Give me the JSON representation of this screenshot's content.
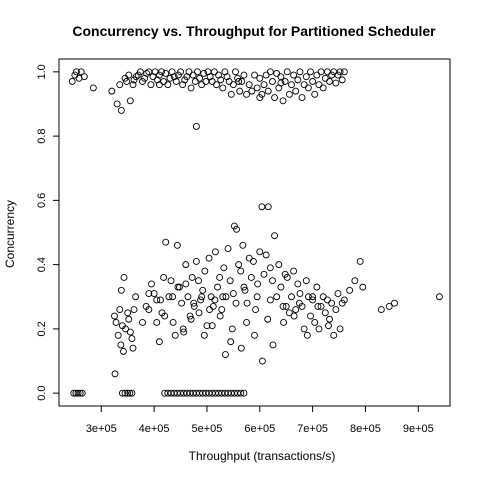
{
  "chart_data": {
    "type": "scatter",
    "title": "Concurrency vs. Throughput for Partitioned Scheduler",
    "xlabel": "Throughput (transactions/s)",
    "ylabel": "Concurrency",
    "xlim": [
      220000,
      960000
    ],
    "ylim": [
      -0.04,
      1.04
    ],
    "grid": false,
    "marker": "open-circle",
    "point_color": "#000000",
    "x_ticks": [
      300000,
      400000,
      500000,
      600000,
      700000,
      800000,
      900000
    ],
    "x_tick_labels": [
      "3e+05",
      "4e+05",
      "5e+05",
      "6e+05",
      "7e+05",
      "8e+05",
      "9e+05"
    ],
    "y_ticks": [
      0.0,
      0.2,
      0.4,
      0.6,
      0.8,
      1.0
    ],
    "y_tick_labels": [
      "0.0",
      "0.2",
      "0.4",
      "0.6",
      "0.8",
      "1.0"
    ],
    "points": [
      [
        245000,
        0.97
      ],
      [
        250000,
        0.99
      ],
      [
        253000,
        1.0
      ],
      [
        258000,
        0.98
      ],
      [
        262000,
        1.0
      ],
      [
        268000,
        0.985
      ],
      [
        285000,
        0.95
      ],
      [
        320000,
        0.94
      ],
      [
        330000,
        0.9
      ],
      [
        335000,
        0.96
      ],
      [
        338000,
        0.88
      ],
      [
        345000,
        0.98
      ],
      [
        348000,
        0.97
      ],
      [
        352000,
        0.99
      ],
      [
        355000,
        0.91
      ],
      [
        360000,
        0.96
      ],
      [
        362000,
        0.975
      ],
      [
        366000,
        0.985
      ],
      [
        370000,
        0.99
      ],
      [
        374000,
        1.0
      ],
      [
        378000,
        0.97
      ],
      [
        382000,
        0.98
      ],
      [
        386000,
        0.995
      ],
      [
        390000,
        1.0
      ],
      [
        394000,
        0.96
      ],
      [
        398000,
        0.985
      ],
      [
        402000,
        1.0
      ],
      [
        406000,
        0.975
      ],
      [
        410000,
        0.99
      ],
      [
        414000,
        1.0
      ],
      [
        418000,
        0.97
      ],
      [
        422000,
        0.995
      ],
      [
        426000,
        0.96
      ],
      [
        430000,
        0.98
      ],
      [
        434000,
        1.0
      ],
      [
        438000,
        0.985
      ],
      [
        442000,
        0.97
      ],
      [
        446000,
        0.99
      ],
      [
        450000,
        1.0
      ],
      [
        454000,
        0.96
      ],
      [
        458000,
        0.975
      ],
      [
        462000,
        0.985
      ],
      [
        466000,
        1.0
      ],
      [
        470000,
        0.95
      ],
      [
        474000,
        0.99
      ],
      [
        478000,
        0.97
      ],
      [
        482000,
        1.0
      ],
      [
        486000,
        0.98
      ],
      [
        490000,
        0.96
      ],
      [
        494000,
        0.995
      ],
      [
        498000,
        0.97
      ],
      [
        502000,
        1.0
      ],
      [
        506000,
        0.985
      ],
      [
        510000,
        0.97
      ],
      [
        514000,
        1.0
      ],
      [
        518000,
        0.96
      ],
      [
        522000,
        0.99
      ],
      [
        526000,
        0.975
      ],
      [
        530000,
        0.95
      ],
      [
        534000,
        1.0
      ],
      [
        538000,
        0.985
      ],
      [
        542000,
        0.97
      ],
      [
        546000,
        0.93
      ],
      [
        550000,
        0.96
      ],
      [
        554000,
        1.0
      ],
      [
        558000,
        0.98
      ],
      [
        562000,
        0.94
      ],
      [
        566000,
        0.97
      ],
      [
        570000,
        0.99
      ],
      [
        575000,
        0.93
      ],
      [
        580000,
        0.96
      ],
      [
        585000,
        0.94
      ],
      [
        590000,
        0.99
      ],
      [
        595000,
        0.95
      ],
      [
        600000,
        0.98
      ],
      [
        604000,
        0.93
      ],
      [
        608000,
        0.96
      ],
      [
        612000,
        0.99
      ],
      [
        616000,
        0.94
      ],
      [
        620000,
        1.0
      ],
      [
        624000,
        0.97
      ],
      [
        628000,
        0.92
      ],
      [
        632000,
        0.995
      ],
      [
        636000,
        0.95
      ],
      [
        640000,
        0.985
      ],
      [
        644000,
        0.91
      ],
      [
        648000,
        0.97
      ],
      [
        652000,
        1.0
      ],
      [
        656000,
        0.93
      ],
      [
        660000,
        0.96
      ],
      [
        664000,
        0.99
      ],
      [
        668000,
        0.94
      ],
      [
        672000,
        0.975
      ],
      [
        676000,
        1.0
      ],
      [
        680000,
        0.92
      ],
      [
        684000,
        0.96
      ],
      [
        688000,
        0.985
      ],
      [
        692000,
        0.95
      ],
      [
        696000,
        1.0
      ],
      [
        700000,
        0.97
      ],
      [
        704000,
        0.93
      ],
      [
        708000,
        0.99
      ],
      [
        712000,
        0.96
      ],
      [
        716000,
        1.0
      ],
      [
        720000,
        0.95
      ],
      [
        724000,
        0.98
      ],
      [
        728000,
        1.0
      ],
      [
        732000,
        0.97
      ],
      [
        736000,
        0.99
      ],
      [
        740000,
        1.0
      ],
      [
        744000,
        0.965
      ],
      [
        748000,
        0.99
      ],
      [
        752000,
        1.0
      ],
      [
        756000,
        0.975
      ],
      [
        760000,
        1.0
      ],
      [
        480000,
        0.83
      ],
      [
        410000,
        0.96
      ],
      [
        600000,
        0.92
      ],
      [
        640000,
        0.965
      ],
      [
        560000,
        0.97
      ],
      [
        248000,
        0.0
      ],
      [
        252000,
        0.0
      ],
      [
        256000,
        0.0
      ],
      [
        260000,
        0.0
      ],
      [
        264000,
        0.0
      ],
      [
        340000,
        0.0
      ],
      [
        345000,
        0.0
      ],
      [
        350000,
        0.0
      ],
      [
        354000,
        0.0
      ],
      [
        358000,
        0.0
      ],
      [
        420000,
        0.0
      ],
      [
        426000,
        0.0
      ],
      [
        432000,
        0.0
      ],
      [
        438000,
        0.0
      ],
      [
        444000,
        0.0
      ],
      [
        450000,
        0.0
      ],
      [
        456000,
        0.0
      ],
      [
        462000,
        0.0
      ],
      [
        468000,
        0.0
      ],
      [
        474000,
        0.0
      ],
      [
        480000,
        0.0
      ],
      [
        486000,
        0.0
      ],
      [
        492000,
        0.0
      ],
      [
        498000,
        0.0
      ],
      [
        504000,
        0.0
      ],
      [
        510000,
        0.0
      ],
      [
        516000,
        0.0
      ],
      [
        522000,
        0.0
      ],
      [
        528000,
        0.0
      ],
      [
        534000,
        0.0
      ],
      [
        540000,
        0.0
      ],
      [
        546000,
        0.0
      ],
      [
        552000,
        0.0
      ],
      [
        558000,
        0.0
      ],
      [
        564000,
        0.0
      ],
      [
        570000,
        0.0
      ],
      [
        325000,
        0.24
      ],
      [
        328000,
        0.22
      ],
      [
        332000,
        0.18
      ],
      [
        335000,
        0.26
      ],
      [
        337000,
        0.15
      ],
      [
        340000,
        0.21
      ],
      [
        342000,
        0.13
      ],
      [
        343000,
        0.36
      ],
      [
        346000,
        0.2
      ],
      [
        350000,
        0.25
      ],
      [
        352000,
        0.23
      ],
      [
        355000,
        0.19
      ],
      [
        358000,
        0.17
      ],
      [
        360000,
        0.14
      ],
      [
        362000,
        0.26
      ],
      [
        365000,
        0.3
      ],
      [
        326000,
        0.06
      ],
      [
        338000,
        0.32
      ],
      [
        378000,
        0.22
      ],
      [
        385000,
        0.27
      ],
      [
        390000,
        0.26
      ],
      [
        395000,
        0.34
      ],
      [
        400000,
        0.31
      ],
      [
        405000,
        0.22
      ],
      [
        410000,
        0.16
      ],
      [
        412000,
        0.29
      ],
      [
        415000,
        0.25
      ],
      [
        418000,
        0.36
      ],
      [
        422000,
        0.47
      ],
      [
        428000,
        0.3
      ],
      [
        432000,
        0.35
      ],
      [
        436000,
        0.22
      ],
      [
        440000,
        0.18
      ],
      [
        444000,
        0.46
      ],
      [
        448000,
        0.33
      ],
      [
        452000,
        0.28
      ],
      [
        456000,
        0.19
      ],
      [
        460000,
        0.4
      ],
      [
        464000,
        0.3
      ],
      [
        468000,
        0.24
      ],
      [
        472000,
        0.36
      ],
      [
        476000,
        0.27
      ],
      [
        480000,
        0.41
      ],
      [
        484000,
        0.35
      ],
      [
        488000,
        0.29
      ],
      [
        492000,
        0.32
      ],
      [
        496000,
        0.38
      ],
      [
        500000,
        0.21
      ],
      [
        504000,
        0.42
      ],
      [
        508000,
        0.3
      ],
      [
        512000,
        0.27
      ],
      [
        516000,
        0.44
      ],
      [
        520000,
        0.33
      ],
      [
        524000,
        0.36
      ],
      [
        528000,
        0.26
      ],
      [
        532000,
        0.39
      ],
      [
        536000,
        0.3
      ],
      [
        540000,
        0.45
      ],
      [
        544000,
        0.35
      ],
      [
        548000,
        0.2
      ],
      [
        552000,
        0.52
      ],
      [
        556000,
        0.51
      ],
      [
        560000,
        0.4
      ],
      [
        564000,
        0.38
      ],
      [
        568000,
        0.46
      ],
      [
        572000,
        0.32
      ],
      [
        576000,
        0.28
      ],
      [
        580000,
        0.42
      ],
      [
        584000,
        0.36
      ],
      [
        588000,
        0.41
      ],
      [
        592000,
        0.26
      ],
      [
        596000,
        0.34
      ],
      [
        600000,
        0.44
      ],
      [
        604000,
        0.58
      ],
      [
        608000,
        0.37
      ],
      [
        612000,
        0.43
      ],
      [
        616000,
        0.58
      ],
      [
        620000,
        0.39
      ],
      [
        624000,
        0.35
      ],
      [
        628000,
        0.49
      ],
      [
        632000,
        0.3
      ],
      [
        636000,
        0.4
      ],
      [
        640000,
        0.33
      ],
      [
        644000,
        0.27
      ],
      [
        648000,
        0.37
      ],
      [
        652000,
        0.36
      ],
      [
        656000,
        0.25
      ],
      [
        660000,
        0.3
      ],
      [
        664000,
        0.38
      ],
      [
        668000,
        0.26
      ],
      [
        672000,
        0.34
      ],
      [
        676000,
        0.31
      ],
      [
        680000,
        0.27
      ],
      [
        684000,
        0.2
      ],
      [
        688000,
        0.35
      ],
      [
        692000,
        0.3
      ],
      [
        696000,
        0.24
      ],
      [
        700000,
        0.29
      ],
      [
        704000,
        0.22
      ],
      [
        708000,
        0.33
      ],
      [
        712000,
        0.2
      ],
      [
        716000,
        0.27
      ],
      [
        720000,
        0.3
      ],
      [
        724000,
        0.25
      ],
      [
        728000,
        0.29
      ],
      [
        732000,
        0.23
      ],
      [
        736000,
        0.28
      ],
      [
        740000,
        0.18
      ],
      [
        744000,
        0.26
      ],
      [
        748000,
        0.31
      ],
      [
        752000,
        0.2
      ],
      [
        756000,
        0.28
      ],
      [
        760000,
        0.29
      ],
      [
        770000,
        0.32
      ],
      [
        780000,
        0.35
      ],
      [
        790000,
        0.41
      ],
      [
        795000,
        0.33
      ],
      [
        830000,
        0.26
      ],
      [
        845000,
        0.27
      ],
      [
        855000,
        0.28
      ],
      [
        940000,
        0.3
      ],
      [
        455000,
        0.2
      ],
      [
        470000,
        0.23
      ],
      [
        485000,
        0.25
      ],
      [
        495000,
        0.18
      ],
      [
        510000,
        0.21
      ],
      [
        525000,
        0.24
      ],
      [
        535000,
        0.12
      ],
      [
        545000,
        0.16
      ],
      [
        555000,
        0.28
      ],
      [
        565000,
        0.14
      ],
      [
        575000,
        0.22
      ],
      [
        590000,
        0.18
      ],
      [
        605000,
        0.1
      ],
      [
        615000,
        0.23
      ],
      [
        625000,
        0.15
      ],
      [
        645000,
        0.22
      ],
      [
        665000,
        0.24
      ],
      [
        690000,
        0.18
      ],
      [
        710000,
        0.27
      ],
      [
        730000,
        0.21
      ],
      [
        390000,
        0.31
      ],
      [
        405000,
        0.29
      ],
      [
        420000,
        0.24
      ],
      [
        435000,
        0.3
      ],
      [
        445000,
        0.33
      ],
      [
        460000,
        0.34
      ],
      [
        475000,
        0.28
      ],
      [
        490000,
        0.3
      ],
      [
        505000,
        0.26
      ],
      [
        515000,
        0.29
      ],
      [
        530000,
        0.3
      ],
      [
        550000,
        0.31
      ],
      [
        570000,
        0.33
      ],
      [
        595000,
        0.3
      ],
      [
        620000,
        0.29
      ],
      [
        650000,
        0.27
      ],
      [
        675000,
        0.28
      ],
      [
        700000,
        0.3
      ]
    ]
  }
}
